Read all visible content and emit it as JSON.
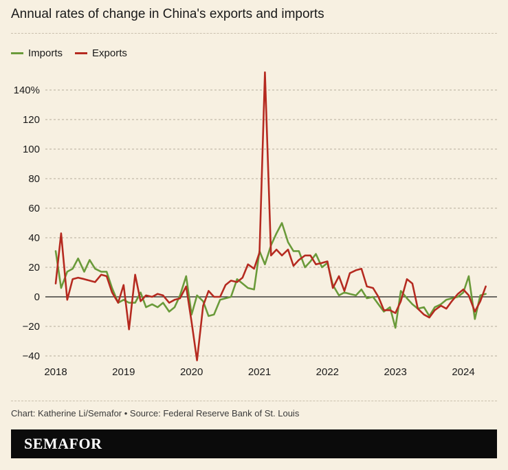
{
  "title": "Annual rates of change in China's exports and imports",
  "credit": "Chart: Katherine Li/Semafor • Source: Federal Reserve Bank of St. Louis",
  "brand": "SEMAFOR",
  "colors": {
    "imports": "#6a9a3a",
    "exports": "#b52a20",
    "background": "#f7f0e1"
  },
  "chart_data": {
    "type": "line",
    "title": "Annual rates of change in China's exports and imports",
    "xlabel": "",
    "ylabel": "",
    "legend": "top-left",
    "grid": true,
    "xlim": [
      2018.0,
      2024.45
    ],
    "ylim": [
      -45,
      155
    ],
    "y_ticks": [
      -40,
      -20,
      0,
      20,
      40,
      60,
      80,
      100,
      120,
      140
    ],
    "y_tick_labels": [
      "−40",
      "−20",
      "0",
      "20",
      "40",
      "60",
      "80",
      "100",
      "120",
      "140%"
    ],
    "x_ticks": [
      2018,
      2019,
      2020,
      2021,
      2022,
      2023,
      2024
    ],
    "x_tick_labels": [
      "2018",
      "2019",
      "2020",
      "2021",
      "2022",
      "2023",
      "2024"
    ],
    "series": [
      {
        "name": "Imports",
        "color": "#6a9a3a",
        "x": [
          2018.0,
          2018.08,
          2018.17,
          2018.25,
          2018.33,
          2018.42,
          2018.5,
          2018.58,
          2018.67,
          2018.75,
          2018.83,
          2018.92,
          2019.0,
          2019.08,
          2019.17,
          2019.25,
          2019.33,
          2019.42,
          2019.5,
          2019.58,
          2019.67,
          2019.75,
          2019.83,
          2019.92,
          2020.0,
          2020.08,
          2020.17,
          2020.25,
          2020.33,
          2020.42,
          2020.5,
          2020.58,
          2020.67,
          2020.75,
          2020.83,
          2020.92,
          2021.0,
          2021.08,
          2021.17,
          2021.25,
          2021.33,
          2021.42,
          2021.5,
          2021.58,
          2021.67,
          2021.75,
          2021.83,
          2021.92,
          2022.0,
          2022.08,
          2022.17,
          2022.25,
          2022.33,
          2022.42,
          2022.5,
          2022.58,
          2022.67,
          2022.75,
          2022.83,
          2022.92,
          2023.0,
          2023.08,
          2023.17,
          2023.25,
          2023.33,
          2023.42,
          2023.5,
          2023.58,
          2023.67,
          2023.75,
          2023.83,
          2023.92,
          2024.0,
          2024.08,
          2024.17,
          2024.25,
          2024.33
        ],
        "values": [
          31,
          6,
          17,
          19,
          26,
          17,
          25,
          19,
          17,
          17,
          6,
          -4,
          -2,
          -4,
          -4,
          3,
          -7,
          -5,
          -7,
          -4,
          -10,
          -7,
          1,
          14,
          -12,
          1,
          -3,
          -13,
          -12,
          -2,
          -1,
          0,
          12,
          9,
          6,
          5,
          31,
          22,
          35,
          43,
          50,
          37,
          31,
          31,
          20,
          24,
          29,
          20,
          23,
          8,
          1,
          3,
          2,
          1,
          5,
          -1,
          0,
          -5,
          -10,
          -7,
          -21,
          4,
          -1,
          -5,
          -8,
          -7,
          -13,
          -7,
          -5,
          -2,
          -1,
          0,
          3,
          14,
          -15,
          1,
          2
        ]
      },
      {
        "name": "Exports",
        "color": "#b52a20",
        "x": [
          2018.0,
          2018.08,
          2018.17,
          2018.25,
          2018.33,
          2018.42,
          2018.5,
          2018.58,
          2018.67,
          2018.75,
          2018.83,
          2018.92,
          2019.0,
          2019.08,
          2019.17,
          2019.25,
          2019.33,
          2019.42,
          2019.5,
          2019.58,
          2019.67,
          2019.75,
          2019.83,
          2019.92,
          2020.0,
          2020.08,
          2020.17,
          2020.25,
          2020.33,
          2020.42,
          2020.5,
          2020.58,
          2020.67,
          2020.75,
          2020.83,
          2020.92,
          2021.0,
          2021.08,
          2021.17,
          2021.25,
          2021.33,
          2021.42,
          2021.5,
          2021.58,
          2021.67,
          2021.75,
          2021.83,
          2021.92,
          2022.0,
          2022.08,
          2022.17,
          2022.25,
          2022.33,
          2022.42,
          2022.5,
          2022.58,
          2022.67,
          2022.75,
          2022.83,
          2022.92,
          2023.0,
          2023.08,
          2023.17,
          2023.25,
          2023.33,
          2023.42,
          2023.5,
          2023.58,
          2023.67,
          2023.75,
          2023.83,
          2023.92,
          2024.0,
          2024.08,
          2024.17,
          2024.25,
          2024.33
        ],
        "values": [
          9,
          43,
          -2,
          12,
          13,
          12,
          11,
          10,
          15,
          14,
          3,
          -4,
          8,
          -22,
          15,
          -3,
          1,
          0,
          2,
          1,
          -4,
          -2,
          -1,
          7,
          -17,
          -43,
          -6,
          4,
          0,
          0,
          8,
          11,
          10,
          13,
          22,
          19,
          30,
          152,
          28,
          32,
          28,
          32,
          21,
          25,
          28,
          28,
          22,
          23,
          24,
          6,
          14,
          4,
          16,
          18,
          19,
          7,
          6,
          0,
          -9,
          -9,
          -11,
          -3,
          12,
          9,
          -8,
          -12,
          -14,
          -9,
          -6,
          -8,
          -3,
          2,
          5,
          1,
          -10,
          -3,
          7
        ]
      }
    ]
  }
}
